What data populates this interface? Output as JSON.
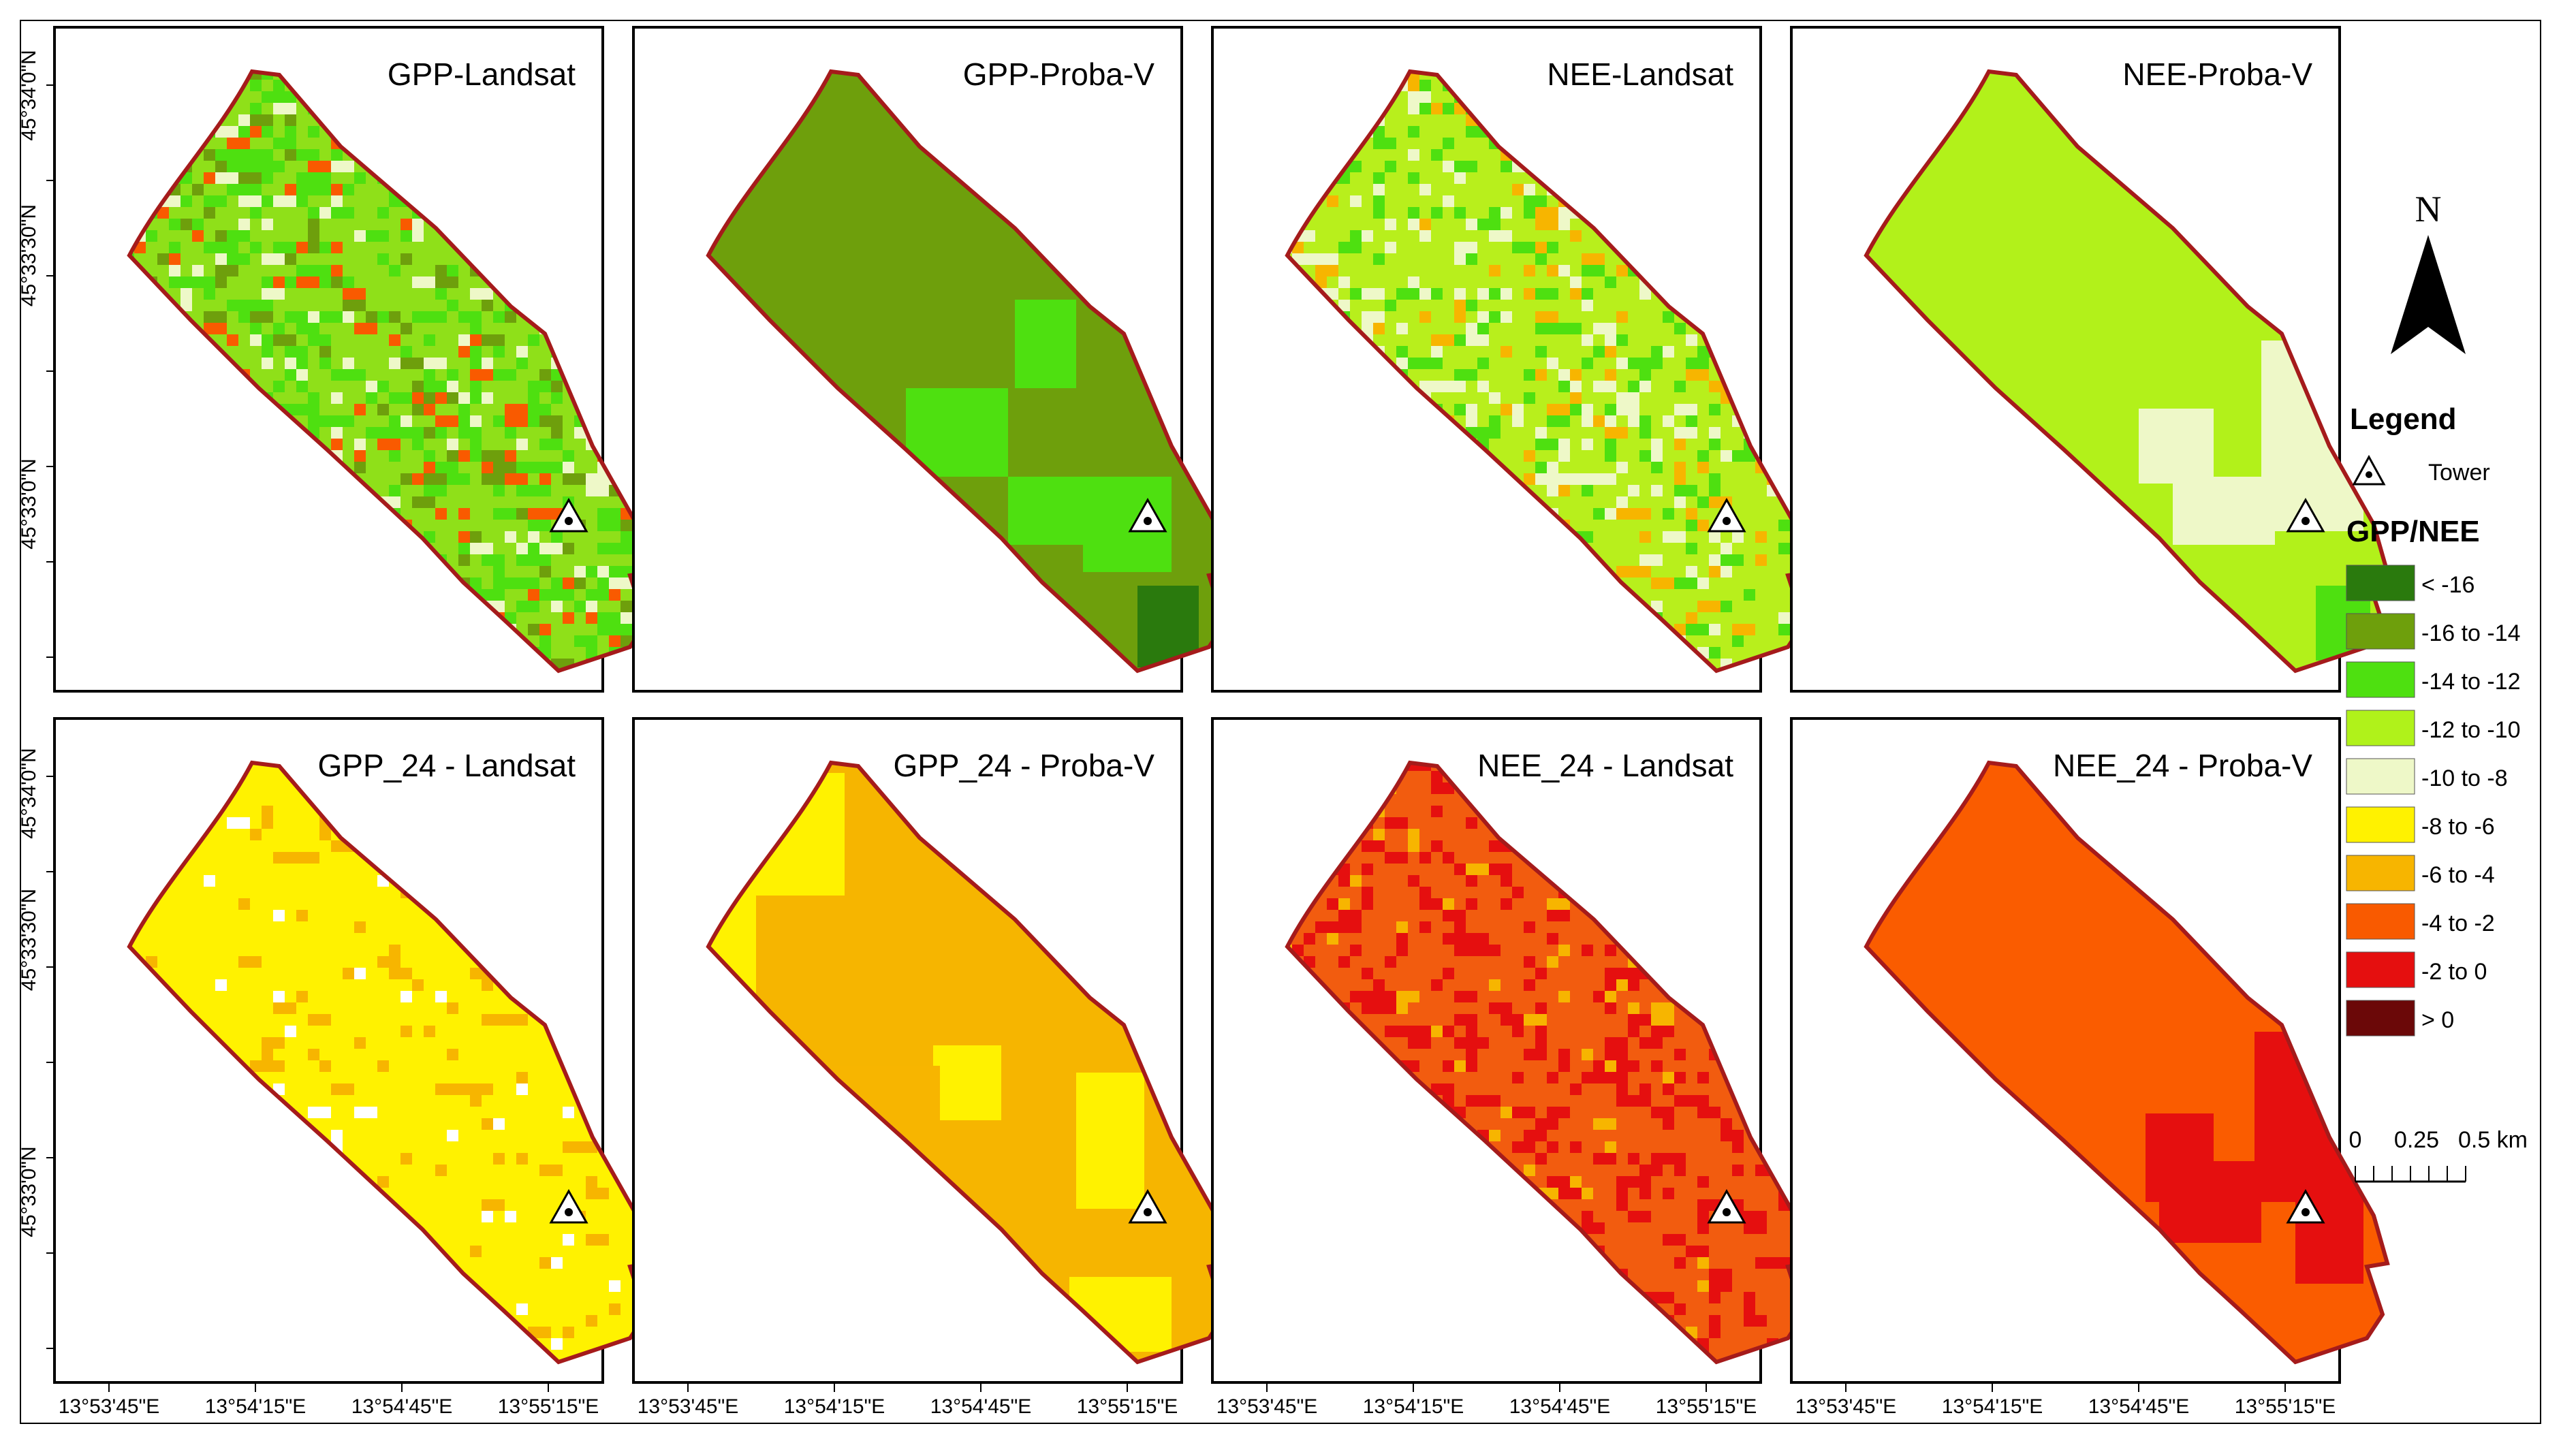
{
  "panels": [
    {
      "title": "GPP-Landsat",
      "base": "#8fe019",
      "variant": "landsat-gpp"
    },
    {
      "title": "GPP-Proba-V",
      "base": "#6e9f0c",
      "variant": "proba-gpp"
    },
    {
      "title": "NEE-Landsat",
      "base": "#b8ef1c",
      "variant": "landsat-nee"
    },
    {
      "title": "NEE-Proba-V",
      "base": "#b2f11a",
      "variant": "proba-nee"
    },
    {
      "title": "GPP_24 - Landsat",
      "base": "#fff200",
      "variant": "landsat-gpp24"
    },
    {
      "title": "GPP_24 - Proba-V",
      "base": "#f6b500",
      "variant": "proba-gpp24"
    },
    {
      "title": "NEE_24 - Landsat",
      "base": "#f25c0f",
      "variant": "landsat-nee24"
    },
    {
      "title": "NEE_24 - Proba-V",
      "base": "#fa5c00",
      "variant": "proba-nee24"
    }
  ],
  "axes": {
    "lat_labels": [
      "45°34'0\"N",
      "45°33'30\"N",
      "45°33'0\"N"
    ],
    "lon_labels": [
      "13°53'45\"E",
      "13°54'15\"E",
      "13°54'45\"E",
      "13°55'15\"E"
    ]
  },
  "legend": {
    "title": "Legend",
    "tower_label": "Tower",
    "ramp_title": "GPP/NEE",
    "classes": [
      {
        "label": "< -16",
        "color": "#2a7a0d"
      },
      {
        "label": "-16 to -14",
        "color": "#6e9f0c"
      },
      {
        "label": "-14 to -12",
        "color": "#4ee010"
      },
      {
        "label": "-12 to -10",
        "color": "#b0f21a"
      },
      {
        "label": "-10 to -8",
        "color": "#eef8c8"
      },
      {
        "label": "-8 to -6",
        "color": "#fff200"
      },
      {
        "label": "-6 to -4",
        "color": "#f7b500"
      },
      {
        "label": "-4 to -2",
        "color": "#f95a00"
      },
      {
        "label": "-2 to 0",
        "color": "#e50f0f"
      },
      {
        "label": "> 0",
        "color": "#6b0808"
      }
    ]
  },
  "north": {
    "label": "N"
  },
  "scale": {
    "labels": [
      "0",
      "0.25",
      "0.5 km"
    ]
  },
  "colors": {
    "outline": "#a51b1b",
    "frame": "#000000"
  }
}
